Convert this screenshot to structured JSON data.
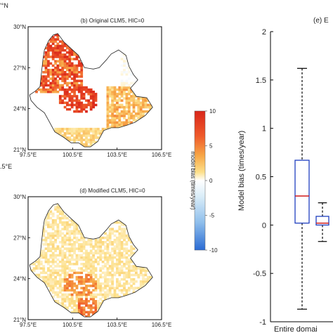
{
  "chart_data": [
    {
      "type": "heatmap",
      "panel": "(b)",
      "title": "(b) Original CLM5, HIC=0",
      "y_ticks": [
        "30°N",
        "27°N",
        "24°N",
        "21°N"
      ],
      "x_ticks": [
        "97.5°E",
        "100.5°E",
        "103.5°E",
        "106.5°E"
      ],
      "left_fragment": ".5°E",
      "xlim": [
        97.5,
        106.5
      ],
      "ylim": [
        21,
        30
      ]
    },
    {
      "type": "heatmap",
      "panel": "(d)",
      "title": "(d) Modified CLM5, HIC=0",
      "y_ticks": [
        "30°N",
        "27°N",
        "24°N",
        "21°N"
      ],
      "x_ticks": [
        "97.5°E",
        "100.5°E",
        "103.5°E",
        "106.5°E"
      ],
      "left_fragment": ".5°E",
      "xlim": [
        97.5,
        106.5
      ],
      "ylim": [
        21,
        30
      ]
    },
    {
      "type": "colorbar",
      "label": "model bias (times/year)",
      "ticks": [
        "10",
        "5",
        "0",
        "-5",
        "-10"
      ],
      "range": [
        -10,
        10
      ],
      "colors": [
        "#2c6fd6",
        "#9cc8ee",
        "#ffffff",
        "#fbe27a",
        "#f5a040",
        "#e02a16"
      ]
    },
    {
      "type": "boxplot",
      "panel": "(e)",
      "title_fragment": "(e) E",
      "ylabel": "Model bias (times/year)",
      "y_ticks": [
        "2",
        "1.5",
        "1",
        "0.5",
        "0",
        "-0.5",
        "-1"
      ],
      "ylim": [
        -1,
        2
      ],
      "category": "Entire domai",
      "boxes": [
        {
          "whisker_low": -0.87,
          "q1": 0.02,
          "median": 0.3,
          "q3": 0.67,
          "whisker_high": 1.62,
          "box_color": "#1f3fbf",
          "median_color": "#d01818"
        },
        {
          "whisker_low": -0.17,
          "q1": 0.0,
          "median": 0.02,
          "q3": 0.09,
          "whisker_high": 0.23,
          "box_color": "#1f3fbf",
          "median_color": "#d01818"
        }
      ]
    }
  ],
  "fragments": {
    "left_top": "'°N",
    "left_mid": ".5°E"
  }
}
